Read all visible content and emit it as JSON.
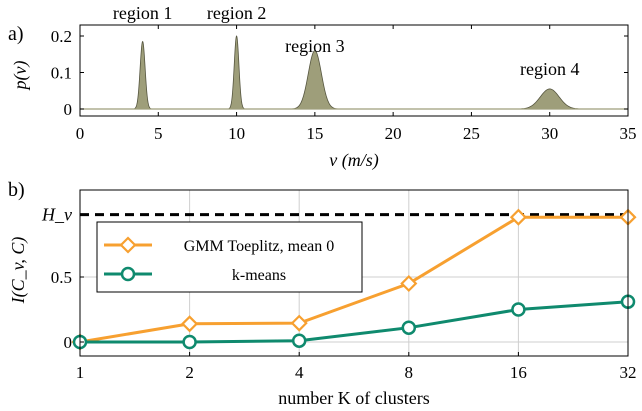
{
  "chart_data": [
    {
      "type": "area",
      "panel_label": "a)",
      "xlabel": "v (m/s)",
      "ylabel": "p(v)",
      "xlim": [
        0,
        35
      ],
      "ylim": [
        0,
        0.22
      ],
      "x_ticks": [
        "0",
        "5",
        "10",
        "15",
        "20",
        "25",
        "30",
        "35"
      ],
      "y_ticks": [
        "0",
        "0.1",
        "0.2"
      ],
      "grid": false,
      "fill_color": "#9e9e7a",
      "series": [
        {
          "label": "region 1",
          "center": 4,
          "peak": 0.185,
          "width": 0.16
        },
        {
          "label": "region 2",
          "center": 10,
          "peak": 0.2,
          "width": 0.15
        },
        {
          "label": "region 3",
          "center": 15,
          "peak": 0.16,
          "width": 0.42
        },
        {
          "label": "region 4",
          "center": 30,
          "peak": 0.055,
          "width": 0.6
        }
      ]
    },
    {
      "type": "line",
      "panel_label": "b)",
      "xlabel": "number K of clusters",
      "ylabel": "I(C_v, C)",
      "x_scale": "log2",
      "x": [
        1,
        2,
        4,
        8,
        16,
        32
      ],
      "x_ticks": [
        "1",
        "2",
        "4",
        "8",
        "16",
        "32"
      ],
      "y_ticks": [
        "0",
        "0.5"
      ],
      "ylim": [
        -0.05,
        1.05
      ],
      "grid": true,
      "legend_position": "left",
      "reference_line": {
        "label": "H_v",
        "value": 0.98,
        "style": "dashed",
        "color": "#000000"
      },
      "series": [
        {
          "name": "GMM Toeplitz, mean 0",
          "values": [
            0.0,
            0.14,
            0.145,
            0.45,
            0.96,
            0.96
          ],
          "color": "#f7a030",
          "marker": "diamond"
        },
        {
          "name": "k-means",
          "values": [
            0.0,
            0.0,
            0.01,
            0.11,
            0.25,
            0.31
          ],
          "color": "#0f8a6e",
          "marker": "circle"
        }
      ]
    }
  ]
}
